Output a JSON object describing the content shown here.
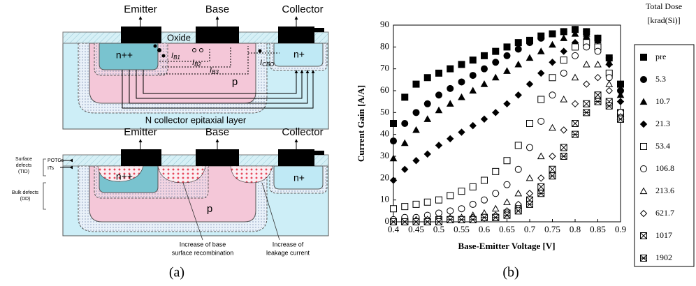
{
  "diagram": {
    "top": {
      "terminals": [
        "Emitter",
        "Base",
        "Collector"
      ],
      "oxide": "Oxide",
      "regions": [
        "n++",
        "p",
        "n+"
      ],
      "currents": [
        {
          "symbol": "I",
          "sub": "B1"
        },
        {
          "symbol": "I",
          "sub": "B2"
        },
        {
          "symbol": "I",
          "sub": "B3"
        },
        {
          "symbol": "I",
          "sub": "CBO"
        }
      ],
      "layer": "N collector epitaxial layer"
    },
    "bottom": {
      "terminals": [
        "Emitter",
        "Base",
        "Collector"
      ],
      "regions": [
        "n++",
        "p",
        "n+"
      ],
      "surface_defects": [
        "Surface",
        "defects",
        "(TID)"
      ],
      "surface_types": [
        "POTCs",
        "ITs"
      ],
      "bulk_defects": [
        "Bulk defects",
        "(DD)"
      ],
      "notes": [
        [
          "Increase of base",
          "surface recombination"
        ],
        [
          "Increase of",
          "leakage current"
        ]
      ]
    }
  },
  "chart_data": {
    "type": "scatter",
    "ylabel": "Current Gain [A/A]",
    "xlabel": "Base-Emitter Voltage [V]",
    "legend_title": [
      "Total Dose",
      "[krad(Si)]"
    ],
    "legend": "right",
    "xlim": [
      0.4,
      0.9
    ],
    "xticks": [
      0.4,
      0.45,
      0.5,
      0.55,
      0.6,
      0.65,
      0.7,
      0.75,
      0.8,
      0.85,
      0.9
    ],
    "ylim": [
      0,
      90
    ],
    "yticks": [
      0,
      10,
      20,
      30,
      40,
      50,
      60,
      70,
      80,
      90
    ],
    "x": [
      0.4,
      0.425,
      0.45,
      0.475,
      0.5,
      0.525,
      0.55,
      0.575,
      0.6,
      0.625,
      0.65,
      0.675,
      0.7,
      0.725,
      0.75,
      0.775,
      0.8,
      0.825,
      0.85,
      0.875,
      0.9
    ],
    "series": [
      {
        "name": "pre",
        "color": "#000000",
        "marker": "square",
        "filled": true,
        "values": [
          45,
          57,
          63,
          66,
          68,
          70,
          72,
          74,
          76,
          78,
          80,
          82,
          83,
          85,
          86,
          87,
          88,
          87,
          84,
          75,
          63
        ]
      },
      {
        "name": "5.3",
        "color": "#000000",
        "marker": "circle",
        "filled": true,
        "values": [
          37,
          45,
          50,
          54,
          58,
          61,
          64,
          67,
          70,
          73,
          76,
          79,
          82,
          84,
          86,
          87,
          88,
          87,
          84,
          75,
          60
        ]
      },
      {
        "name": "10.7",
        "color": "#000000",
        "marker": "triangle",
        "filled": true,
        "values": [
          29,
          36,
          42,
          47,
          51,
          54,
          57,
          60,
          63,
          66,
          69,
          72,
          75,
          78,
          81,
          84,
          86,
          86,
          83,
          73,
          58
        ]
      },
      {
        "name": "21.3",
        "color": "#000000",
        "marker": "diamond",
        "filled": true,
        "values": [
          19,
          24,
          28,
          31,
          35,
          38,
          41,
          44,
          47,
          50,
          54,
          58,
          63,
          68,
          73,
          78,
          82,
          84,
          83,
          72,
          55
        ]
      },
      {
        "name": "53.4",
        "color": "#000000",
        "marker": "square",
        "filled": false,
        "values": [
          6,
          7,
          8,
          9,
          10,
          12,
          14,
          16,
          19,
          23,
          28,
          35,
          45,
          56,
          66,
          74,
          80,
          82,
          80,
          68,
          50
        ]
      },
      {
        "name": "106.8",
        "color": "#000000",
        "marker": "circle",
        "filled": false,
        "values": [
          1,
          2,
          2,
          3,
          4,
          5,
          6,
          8,
          10,
          13,
          17,
          24,
          34,
          46,
          58,
          68,
          76,
          80,
          78,
          66,
          50
        ]
      },
      {
        "name": "213.6",
        "color": "#000000",
        "marker": "triangle",
        "filled": false,
        "values": [
          0,
          0,
          1,
          1,
          1,
          2,
          2,
          3,
          4,
          6,
          9,
          13,
          20,
          30,
          43,
          56,
          66,
          72,
          72,
          63,
          48
        ]
      },
      {
        "name": "621.7",
        "color": "#000000",
        "marker": "diamond",
        "filled": false,
        "values": [
          0,
          0,
          0,
          1,
          1,
          1,
          1,
          2,
          2,
          3,
          5,
          8,
          13,
          20,
          30,
          42,
          54,
          63,
          66,
          60,
          48
        ]
      },
      {
        "name": "1017",
        "color": "#000000",
        "marker": "box-x",
        "filled": false,
        "values": [
          0,
          0,
          0,
          0,
          1,
          1,
          1,
          1,
          2,
          2,
          4,
          6,
          10,
          16,
          24,
          34,
          45,
          54,
          58,
          55,
          47
        ]
      },
      {
        "name": "1902",
        "color": "#000000",
        "marker": "box-star",
        "filled": false,
        "values": [
          0,
          0,
          0,
          0,
          0,
          1,
          1,
          1,
          2,
          2,
          3,
          5,
          8,
          13,
          21,
          30,
          40,
          50,
          55,
          53,
          47
        ]
      }
    ]
  },
  "captions": [
    "(a)",
    "(b)"
  ]
}
